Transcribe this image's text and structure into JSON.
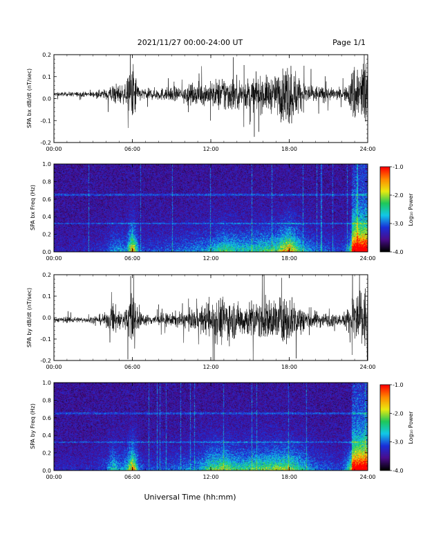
{
  "header": {
    "title": "2021/11/27  00:00-24:00 UT",
    "page": "Page 1/1"
  },
  "footer": {
    "xlabel": "Universal Time (hh:mm)"
  },
  "colorbar": {
    "label": "Log₁₀ Power",
    "ticks": [
      "-1.0",
      "-2.0",
      "-3.0",
      "-4.0"
    ],
    "range": [
      -4.0,
      -1.0
    ],
    "colors": [
      "#000000",
      "#4a0d8c",
      "#1a2fd9",
      "#12c8e8",
      "#1ec85a",
      "#e9ea10",
      "#ff8a00",
      "#ff0000"
    ]
  },
  "x_ticks": [
    "00:00",
    "06:00",
    "12:00",
    "18:00",
    "24:00"
  ],
  "chart_data": [
    {
      "type": "line",
      "ylabel": "SPA bx dB/dt (nT/sec)",
      "xlim": [
        0,
        24
      ],
      "ylim": [
        -0.2,
        0.2
      ],
      "y_ticks": [
        "0.2",
        "0.1",
        "0.0",
        "-0.1",
        "-0.2"
      ],
      "envelope": {
        "hours": [
          0,
          1,
          2,
          3,
          4,
          4.5,
          5,
          5.5,
          6,
          6.5,
          7,
          8,
          9,
          10,
          11,
          12,
          13,
          14,
          15,
          16,
          17,
          18,
          19,
          20,
          21,
          22,
          22.5,
          23,
          23.5,
          24
        ],
        "amplitude": [
          0.012,
          0.012,
          0.014,
          0.016,
          0.03,
          0.06,
          0.06,
          0.05,
          0.2,
          0.04,
          0.03,
          0.035,
          0.04,
          0.05,
          0.06,
          0.07,
          0.11,
          0.09,
          0.09,
          0.1,
          0.11,
          0.2,
          0.08,
          0.05,
          0.04,
          0.03,
          0.05,
          0.2,
          0.2,
          0.2
        ],
        "offset": 0.02
      }
    },
    {
      "type": "heatmap",
      "ylabel": "SPA bx Freq (Hz)",
      "xlim": [
        0,
        24
      ],
      "ylim": [
        0.0,
        1.0
      ],
      "y_ticks": [
        "1.0",
        "0.8",
        "0.6",
        "0.4",
        "0.2",
        "0.0"
      ],
      "zlim": [
        -4.0,
        -1.0
      ]
    },
    {
      "type": "line",
      "ylabel": "SPA by dB/dt (nT/sec)",
      "xlim": [
        0,
        24
      ],
      "ylim": [
        -0.2,
        0.2
      ],
      "y_ticks": [
        "0.2",
        "0.1",
        "0.0",
        "-0.1",
        "-0.2"
      ],
      "envelope": {
        "hours": [
          0,
          1,
          2,
          3,
          4,
          4.5,
          5,
          5.5,
          6,
          6.5,
          7,
          8,
          9,
          10,
          11,
          12,
          13,
          14,
          15,
          16,
          17,
          18,
          19,
          20,
          21,
          22,
          22.5,
          23,
          23.5,
          24
        ],
        "amplitude": [
          0.012,
          0.02,
          0.015,
          0.02,
          0.04,
          0.1,
          0.06,
          0.07,
          0.2,
          0.05,
          0.03,
          0.035,
          0.04,
          0.05,
          0.06,
          0.12,
          0.14,
          0.1,
          0.11,
          0.12,
          0.13,
          0.14,
          0.09,
          0.05,
          0.04,
          0.03,
          0.08,
          0.2,
          0.2,
          0.2
        ],
        "offset": -0.01
      }
    },
    {
      "type": "heatmap",
      "ylabel": "SPA by Freq (Hz)",
      "xlim": [
        0,
        24
      ],
      "ylim": [
        0.0,
        1.0
      ],
      "y_ticks": [
        "1.0",
        "0.8",
        "0.6",
        "0.4",
        "0.2",
        "0.0"
      ],
      "zlim": [
        -4.0,
        -1.0
      ]
    }
  ]
}
